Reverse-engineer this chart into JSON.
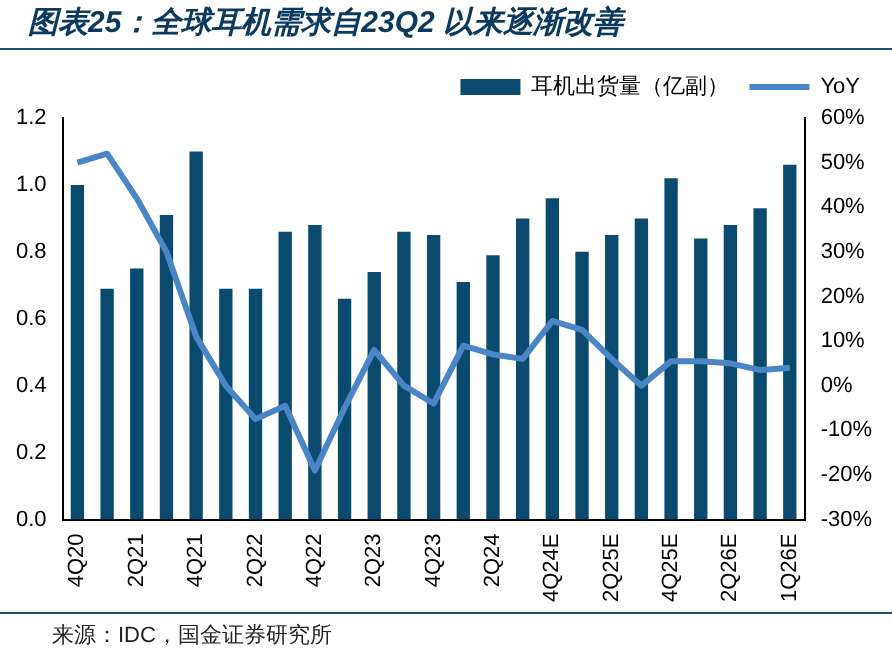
{
  "chart_data": {
    "type": "bar",
    "title": "图表25：全球耳机需求自23Q2 以来逐渐改善",
    "categories": [
      "4Q20",
      null,
      "2Q21",
      null,
      "4Q21",
      null,
      "2Q22",
      null,
      "4Q22",
      null,
      "2Q23",
      null,
      "4Q23",
      null,
      "2Q24",
      null,
      "4Q24E",
      null,
      "2Q25E",
      null,
      "4Q25E",
      null,
      "2Q26E",
      null,
      "1Q26E"
    ],
    "series": [
      {
        "name": "耳机出货量（亿副）",
        "color": "#0b4a6f",
        "values": [
          1.0,
          0.69,
          0.75,
          0.91,
          1.1,
          0.69,
          0.69,
          0.86,
          0.88,
          0.66,
          0.74,
          0.86,
          0.85,
          0.71,
          0.79,
          0.9,
          0.96,
          0.8,
          0.85,
          0.9,
          1.02,
          0.84,
          0.88,
          0.93,
          1.06
        ]
      },
      {
        "name": "YoY",
        "type": "line",
        "axis": "y2",
        "color": "#4a86c5",
        "values": [
          50,
          52,
          42,
          30,
          11,
          0,
          -7.5,
          -4.5,
          -19,
          -5,
          8,
          0,
          -4,
          9,
          7,
          6,
          14.5,
          12.5,
          6,
          0,
          5.5,
          5.5,
          5,
          3.5,
          4
        ]
      }
    ],
    "ylim": [
      0,
      1.2
    ],
    "yticks": [
      {
        "value": 0,
        "label": "0.0"
      },
      {
        "value": 0.2,
        "label": "0.2"
      },
      {
        "value": 0.4,
        "label": "0.4"
      },
      {
        "value": 0.6,
        "label": "0.6"
      },
      {
        "value": 0.8,
        "label": "0.8"
      },
      {
        "value": 1,
        "label": "1.0"
      },
      {
        "value": 1.2,
        "label": "1.2"
      }
    ],
    "y2lim": [
      -30,
      60
    ],
    "y2ticks": [
      {
        "value": -30,
        "label": "-30%"
      },
      {
        "value": -20,
        "label": "-20%"
      },
      {
        "value": -10,
        "label": "-10%"
      },
      {
        "value": 0,
        "label": "0%"
      },
      {
        "value": 10,
        "label": "10%"
      },
      {
        "value": 20,
        "label": "20%"
      },
      {
        "value": 30,
        "label": "30%"
      },
      {
        "value": 40,
        "label": "40%"
      },
      {
        "value": 50,
        "label": "50%"
      },
      {
        "value": 60,
        "label": "60%"
      }
    ],
    "grid": false,
    "legend": "top",
    "marker": "none",
    "annotations": [
      "来源：IDC，国金证券研究所"
    ]
  }
}
